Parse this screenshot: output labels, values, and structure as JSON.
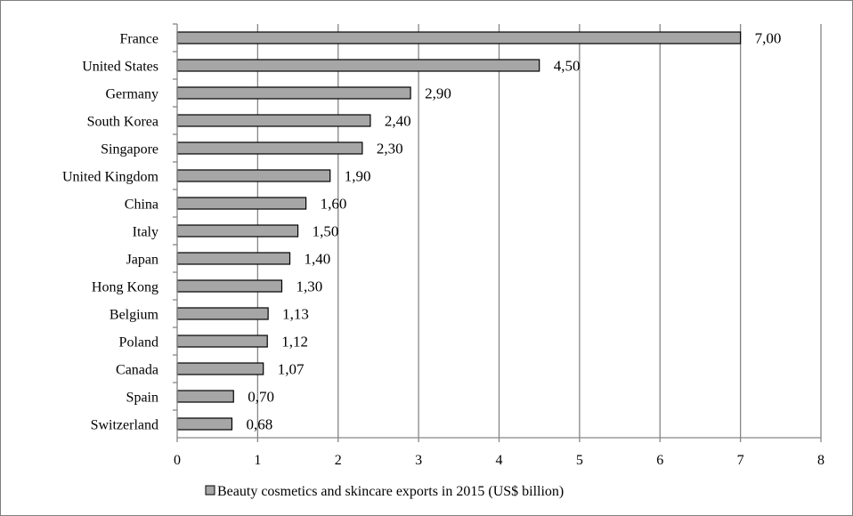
{
  "chart_data": {
    "type": "bar",
    "orientation": "horizontal",
    "categories": [
      "France",
      "United States",
      "Germany",
      "South Korea",
      "Singapore",
      "United Kingdom",
      "China",
      "Italy",
      "Japan",
      "Hong Kong",
      "Belgium",
      "Poland",
      "Canada",
      "Spain",
      "Switzerland"
    ],
    "series": [
      {
        "name": "Beauty cosmetics and skincare exports in 2015 (US$ billion)",
        "values": [
          7.0,
          4.5,
          2.9,
          2.4,
          2.3,
          1.9,
          1.6,
          1.5,
          1.4,
          1.3,
          1.13,
          1.12,
          1.07,
          0.7,
          0.68
        ],
        "value_labels": [
          "7,00",
          "4,50",
          "2,90",
          "2,40",
          "2,30",
          "1,90",
          "1,60",
          "1,50",
          "1,40",
          "1,30",
          "1,13",
          "1,12",
          "1,07",
          "0,70",
          "0,68"
        ]
      }
    ],
    "xticks": [
      "0",
      "1",
      "2",
      "3",
      "4",
      "5",
      "6",
      "7",
      "8"
    ],
    "xlim": [
      0,
      8
    ],
    "title": "",
    "xlabel": "",
    "ylabel": "",
    "grid": true,
    "legend": "bottom",
    "colors": {
      "bar_fill": "#a6a6a6",
      "bar_stroke": "#000000",
      "gridline": "#868686",
      "axis": "#868686"
    }
  }
}
